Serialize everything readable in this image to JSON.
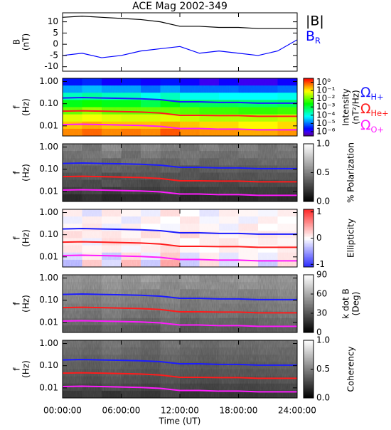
{
  "chart_data": [
    {
      "type": "line",
      "title": "ACE Mag 2002-349",
      "ylabel": [
        "B",
        "(nT)"
      ],
      "ylim": [
        -12,
        14
      ],
      "yticks": [
        -10,
        -5,
        0,
        5,
        10
      ],
      "x": [
        0,
        2,
        4,
        6,
        8,
        10,
        12,
        14,
        16,
        18,
        20,
        22,
        24
      ],
      "series": [
        {
          "name": "|B|",
          "color": "#000000",
          "values": [
            12,
            12.5,
            12,
            11.5,
            11,
            10,
            8,
            8,
            7.5,
            7.5,
            7,
            7,
            7
          ]
        },
        {
          "name": "BR",
          "subscript": true,
          "color": "#0000ff",
          "values": [
            -5,
            -4,
            -6,
            -5,
            -3,
            -2,
            -1,
            -4,
            -3,
            -4,
            -5,
            -3,
            2
          ]
        }
      ]
    },
    {
      "type": "heatmap",
      "ylabel": [
        "f",
        "(Hz)"
      ],
      "ylog": true,
      "ylim": [
        0.0035,
        1.4
      ],
      "yticks": [
        {
          "value": 1,
          "label": "1.00"
        },
        {
          "value": 0.1,
          "label": "0.10"
        },
        {
          "value": 0.01,
          "label": "0.01"
        }
      ],
      "colormap": "rainbow",
      "zlog": true,
      "zlim": [
        3e-07,
        3
      ],
      "zlabel": [
        "Intensity",
        "(nT²/Hz)"
      ],
      "zticks": [
        {
          "value": 1,
          "label": "10⁰"
        },
        {
          "value": 0.1,
          "label": "10⁻¹"
        },
        {
          "value": 0.01,
          "label": "10⁻²"
        },
        {
          "value": 0.001,
          "label": "10⁻³"
        },
        {
          "value": 0.0001,
          "label": "10⁻⁴"
        },
        {
          "value": 1e-05,
          "label": "10⁻⁵"
        },
        {
          "value": 1e-06,
          "label": "10⁻⁶"
        }
      ],
      "z": [
        [
          3e-06,
          4e-06,
          2e-06,
          3e-06,
          2e-06,
          3e-06,
          2e-06,
          1e-06,
          2e-06,
          1e-06,
          1e-06,
          2e-06
        ],
        [
          2e-05,
          3e-05,
          2e-05,
          2e-05,
          1e-05,
          2e-05,
          1e-05,
          1e-05,
          1e-05,
          8e-06,
          8e-06,
          1e-05
        ],
        [
          0.0002,
          0.0003,
          0.0002,
          0.0002,
          0.0001,
          0.0002,
          0.0001,
          0.0001,
          8e-05,
          8e-05,
          8e-05,
          0.0001
        ],
        [
          0.002,
          0.003,
          0.002,
          0.002,
          0.001,
          0.002,
          0.001,
          0.0008,
          0.0008,
          0.0007,
          0.0007,
          0.0008
        ],
        [
          0.01,
          0.02,
          0.01,
          0.01,
          0.01,
          0.01,
          0.008,
          0.006,
          0.006,
          0.005,
          0.005,
          0.006
        ],
        [
          0.06,
          0.08,
          0.06,
          0.05,
          0.05,
          0.06,
          0.04,
          0.03,
          0.03,
          0.03,
          0.03,
          0.04
        ],
        [
          0.2,
          0.3,
          0.2,
          0.2,
          0.2,
          0.3,
          0.2,
          0.15,
          0.15,
          0.1,
          0.1,
          0.15
        ],
        [
          0.5,
          0.8,
          0.5,
          0.6,
          0.5,
          1,
          0.5,
          0.4,
          0.4,
          0.3,
          0.3,
          0.4
        ]
      ],
      "x": [
        0,
        2,
        4,
        6,
        8,
        10,
        12,
        14,
        16,
        18,
        20,
        22,
        24
      ],
      "series": [
        {
          "name": "ΩH+",
          "subscript": true,
          "color": "#1c1cff",
          "values": [
            0.182,
            0.19,
            0.182,
            0.175,
            0.167,
            0.152,
            0.122,
            0.122,
            0.114,
            0.114,
            0.106,
            0.106,
            0.106
          ]
        },
        {
          "name": "ΩHe+",
          "subscript": true,
          "color": "#ff1c1c",
          "values": [
            0.046,
            0.048,
            0.046,
            0.044,
            0.042,
            0.038,
            0.03,
            0.03,
            0.029,
            0.029,
            0.027,
            0.027,
            0.027
          ]
        },
        {
          "name": "ΩO+",
          "subscript": true,
          "color": "#ff1cff",
          "values": [
            0.0114,
            0.0119,
            0.0114,
            0.0109,
            0.0104,
            0.0095,
            0.0076,
            0.0076,
            0.0071,
            0.0071,
            0.0066,
            0.0066,
            0.0066
          ]
        }
      ]
    },
    {
      "type": "heatmap",
      "ylabel": [
        "f",
        "(Hz)"
      ],
      "ylog": true,
      "ylim": [
        0.0035,
        1.4
      ],
      "yticks": [
        {
          "value": 1,
          "label": "1.00"
        },
        {
          "value": 0.1,
          "label": "0.10"
        },
        {
          "value": 0.01,
          "label": "0.01"
        }
      ],
      "colormap": "gray",
      "zlim": [
        0,
        1
      ],
      "zlabel": [
        "% Polarization"
      ],
      "zticks": [
        {
          "value": 0,
          "label": "0.0"
        },
        {
          "value": 0.5,
          "label": "0.5"
        },
        {
          "value": 1,
          "label": "1.0"
        }
      ],
      "z": [
        [
          0.45,
          0.4,
          0.5,
          0.42,
          0.48,
          0.44,
          0.4,
          0.46,
          0.42,
          0.45,
          0.4,
          0.44
        ],
        [
          0.4,
          0.42,
          0.45,
          0.38,
          0.44,
          0.4,
          0.42,
          0.4,
          0.38,
          0.42,
          0.4,
          0.41
        ],
        [
          0.38,
          0.4,
          0.36,
          0.4,
          0.38,
          0.36,
          0.4,
          0.35,
          0.38,
          0.36,
          0.38,
          0.37
        ],
        [
          0.35,
          0.33,
          0.36,
          0.34,
          0.32,
          0.35,
          0.3,
          0.33,
          0.34,
          0.32,
          0.33,
          0.35
        ],
        [
          0.3,
          0.32,
          0.28,
          0.3,
          0.31,
          0.29,
          0.3,
          0.28,
          0.3,
          0.29,
          0.31,
          0.3
        ],
        [
          0.28,
          0.26,
          0.3,
          0.27,
          0.25,
          0.28,
          0.26,
          0.27,
          0.25,
          0.28,
          0.26,
          0.27
        ],
        [
          0.22,
          0.25,
          0.2,
          0.23,
          0.21,
          0.24,
          0.2,
          0.22,
          0.23,
          0.21,
          0.22,
          0.2
        ],
        [
          0.15,
          0.18,
          0.14,
          0.16,
          0.15,
          0.2,
          0.14,
          0.16,
          0.15,
          0.14,
          0.16,
          0.15
        ]
      ]
    },
    {
      "type": "heatmap",
      "ylabel": [
        "f",
        "(Hz)"
      ],
      "ylog": true,
      "ylim": [
        0.0035,
        1.4
      ],
      "yticks": [
        {
          "value": 1,
          "label": "1.00"
        },
        {
          "value": 0.1,
          "label": "0.10"
        },
        {
          "value": 0.01,
          "label": "0.01"
        }
      ],
      "colormap": "bwr",
      "zlim": [
        -1.1,
        1.1
      ],
      "zlabel": [
        "Ellipticity"
      ],
      "zticks": [
        -1,
        0,
        1
      ],
      "z": [
        [
          0.1,
          -0.2,
          0.15,
          0.05,
          -0.1,
          0.2,
          0,
          -0.15,
          0.1,
          0.05,
          -0.05,
          0.1
        ],
        [
          -0.1,
          0.1,
          0.05,
          -0.15,
          0.1,
          0,
          0.15,
          -0.05,
          0.05,
          -0.1,
          0.1,
          0
        ],
        [
          0.05,
          0.15,
          -0.1,
          0.1,
          0,
          -0.05,
          0.1,
          0.05,
          -0.1,
          0.15,
          0,
          0.05
        ],
        [
          0.2,
          0.1,
          0.15,
          0.05,
          0.2,
          0.1,
          0.25,
          0.1,
          0.05,
          0.1,
          0.15,
          0.1
        ],
        [
          0.1,
          -0.1,
          0.2,
          0.15,
          0.05,
          0.1,
          0,
          0.1,
          0.15,
          0.05,
          0.1,
          0.05
        ],
        [
          0.15,
          0.05,
          0.1,
          -0.05,
          0.1,
          0.2,
          0.05,
          0,
          0.1,
          0.05,
          0,
          0.1
        ],
        [
          -0.2,
          0.1,
          -0.3,
          0.2,
          -0.1,
          0.3,
          -0.2,
          0.1,
          -0.15,
          0.05,
          -0.1,
          0.15
        ],
        [
          -0.4,
          0.3,
          -0.2,
          0.4,
          -0.3,
          0.5,
          -0.3,
          0.2,
          -0.2,
          0.1,
          -0.3,
          0.2
        ]
      ]
    },
    {
      "type": "heatmap",
      "ylabel": [
        "f",
        "(Hz)"
      ],
      "ylog": true,
      "ylim": [
        0.0035,
        1.4
      ],
      "yticks": [
        {
          "value": 1,
          "label": "1.00"
        },
        {
          "value": 0.1,
          "label": "0.10"
        },
        {
          "value": 0.01,
          "label": "0.01"
        }
      ],
      "colormap": "gray",
      "zlim": [
        0,
        90
      ],
      "zlabel": [
        "k dot B",
        "(Deg)"
      ],
      "zticks": [
        0,
        30,
        60,
        90
      ],
      "z": [
        [
          48,
          45,
          50,
          47,
          52,
          46,
          49,
          44,
          47,
          50,
          46,
          48
        ],
        [
          46,
          44,
          48,
          45,
          47,
          43,
          46,
          45,
          44,
          47,
          45,
          46
        ],
        [
          44,
          42,
          45,
          43,
          41,
          44,
          40,
          42,
          43,
          41,
          42,
          44
        ],
        [
          42,
          40,
          43,
          41,
          39,
          42,
          38,
          40,
          41,
          39,
          40,
          42
        ],
        [
          40,
          38,
          41,
          39,
          38,
          40,
          37,
          39,
          38,
          37,
          39,
          40
        ],
        [
          38,
          36,
          40,
          37,
          35,
          38,
          34,
          36,
          37,
          35,
          36,
          38
        ],
        [
          34,
          33,
          36,
          32,
          31,
          35,
          30,
          33,
          32,
          31,
          33,
          34
        ],
        [
          30,
          28,
          32,
          29,
          27,
          33,
          26,
          29,
          28,
          27,
          29,
          30
        ]
      ]
    },
    {
      "type": "heatmap",
      "ylabel": [
        "f",
        "(Hz)"
      ],
      "ylog": true,
      "ylim": [
        0.0035,
        1.4
      ],
      "yticks": [
        {
          "value": 1,
          "label": "1.00"
        },
        {
          "value": 0.1,
          "label": "0.10"
        },
        {
          "value": 0.01,
          "label": "0.01"
        }
      ],
      "colormap": "gray",
      "zlim": [
        0,
        1
      ],
      "zlabel": [
        "Coherency"
      ],
      "zticks": [
        {
          "value": 0,
          "label": "0.0"
        },
        {
          "value": 0.5,
          "label": "0.5"
        },
        {
          "value": 1,
          "label": "1.0"
        }
      ],
      "z": [
        [
          0.4,
          0.38,
          0.42,
          0.4,
          0.36,
          0.41,
          0.39,
          0.37,
          0.4,
          0.38,
          0.39,
          0.4
        ],
        [
          0.38,
          0.36,
          0.4,
          0.37,
          0.35,
          0.39,
          0.36,
          0.35,
          0.37,
          0.36,
          0.38,
          0.37
        ],
        [
          0.36,
          0.34,
          0.37,
          0.35,
          0.33,
          0.36,
          0.34,
          0.33,
          0.35,
          0.34,
          0.35,
          0.36
        ],
        [
          0.34,
          0.32,
          0.35,
          0.33,
          0.31,
          0.34,
          0.32,
          0.31,
          0.33,
          0.32,
          0.33,
          0.34
        ],
        [
          0.32,
          0.3,
          0.33,
          0.31,
          0.29,
          0.32,
          0.3,
          0.29,
          0.31,
          0.3,
          0.31,
          0.32
        ],
        [
          0.3,
          0.28,
          0.31,
          0.29,
          0.27,
          0.3,
          0.28,
          0.27,
          0.29,
          0.28,
          0.29,
          0.3
        ],
        [
          0.26,
          0.24,
          0.28,
          0.25,
          0.23,
          0.27,
          0.24,
          0.23,
          0.25,
          0.24,
          0.25,
          0.26
        ],
        [
          0.2,
          0.22,
          0.18,
          0.21,
          0.19,
          0.24,
          0.18,
          0.2,
          0.19,
          0.18,
          0.2,
          0.21
        ]
      ],
      "xlim": [
        0,
        24
      ],
      "xlabel": "Time (UT)",
      "xticks": [
        {
          "value": 0,
          "label": "00:00:00"
        },
        {
          "value": 6,
          "label": "06:00:00"
        },
        {
          "value": 12,
          "label": "12:00:00"
        },
        {
          "value": 18,
          "label": "18:00:00"
        },
        {
          "value": 24,
          "label": "24:00:00"
        }
      ]
    }
  ]
}
